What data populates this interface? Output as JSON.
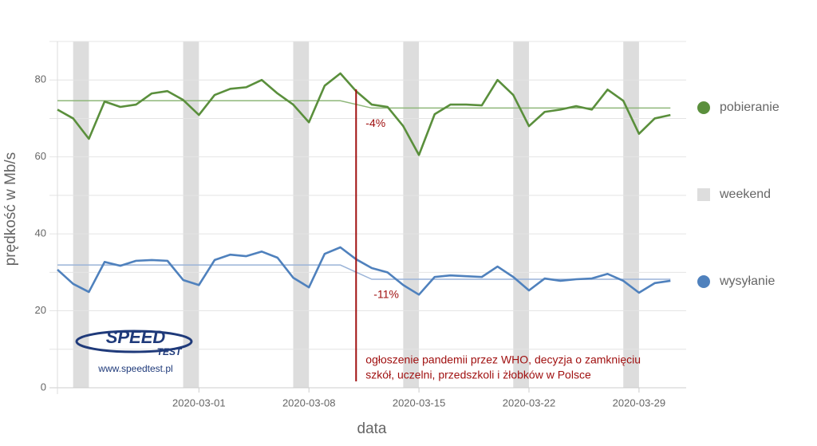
{
  "chart_data": {
    "type": "line",
    "y_label": "prędkość w Mb/s",
    "x_label": "data",
    "x": [
      "2020-02-21",
      "2020-02-22",
      "2020-02-23",
      "2020-02-24",
      "2020-02-25",
      "2020-02-26",
      "2020-02-27",
      "2020-02-28",
      "2020-02-29",
      "2020-03-01",
      "2020-03-02",
      "2020-03-03",
      "2020-03-04",
      "2020-03-05",
      "2020-03-06",
      "2020-03-07",
      "2020-03-08",
      "2020-03-09",
      "2020-03-10",
      "2020-03-11",
      "2020-03-12",
      "2020-03-13",
      "2020-03-14",
      "2020-03-15",
      "2020-03-16",
      "2020-03-17",
      "2020-03-18",
      "2020-03-19",
      "2020-03-20",
      "2020-03-21",
      "2020-03-22",
      "2020-03-23",
      "2020-03-24",
      "2020-03-25",
      "2020-03-26",
      "2020-03-27",
      "2020-03-28",
      "2020-03-29",
      "2020-03-30",
      "2020-03-31"
    ],
    "series": [
      {
        "name": "pobieranie",
        "color": "#5a8f3c",
        "mean_color": "#8fb77a",
        "values": [
          72.3,
          70,
          64.7,
          74.4,
          73,
          73.6,
          76.5,
          77.1,
          74.8,
          70.9,
          76.1,
          77.7,
          78.1,
          80,
          76.5,
          73.6,
          69,
          78.5,
          81.7,
          77.1,
          73.6,
          73,
          68,
          60.5,
          71.1,
          73.6,
          73.6,
          73.4,
          80,
          76.1,
          68,
          71.7,
          72.3,
          73.2,
          72.3,
          77.5,
          74.6,
          66,
          70,
          70.9
        ],
        "mean_before": 74.6,
        "mean_after": 72.7,
        "change_label": "-4%"
      },
      {
        "name": "wysyłanie",
        "color": "#4f81bd",
        "mean_color": "#9bb4d8",
        "values": [
          30.7,
          27,
          24.9,
          32.7,
          31.7,
          33,
          33.2,
          33,
          28,
          26.7,
          33.2,
          34.6,
          34.2,
          35.4,
          33.8,
          28.6,
          26.1,
          34.8,
          36.5,
          33.4,
          31.1,
          30,
          26.7,
          24.2,
          28.8,
          29.2,
          29,
          28.8,
          31.5,
          28.8,
          25.3,
          28.4,
          27.8,
          28.2,
          28.4,
          29.6,
          27.8,
          24.7,
          27.2,
          27.8
        ],
        "mean_before": 31.9,
        "mean_after": 28.2,
        "change_label": "-11%"
      }
    ],
    "weekend": {
      "name": "weekend",
      "color": "#dddddd",
      "bands": [
        [
          "2020-02-22",
          "2020-02-23"
        ],
        [
          "2020-02-29",
          "2020-03-01"
        ],
        [
          "2020-03-07",
          "2020-03-08"
        ],
        [
          "2020-03-14",
          "2020-03-15"
        ],
        [
          "2020-03-21",
          "2020-03-22"
        ],
        [
          "2020-03-28",
          "2020-03-29"
        ]
      ]
    },
    "event": {
      "date": "2020-03-11",
      "color": "#a01010",
      "label": [
        "ogłoszenie pandemii przez WHO, decyzja o zamknięciu",
        "szkół, uczelni, przedszkoli i żłobków w Polsce"
      ]
    },
    "ylim": [
      0,
      90
    ],
    "yticks": [
      0,
      20,
      40,
      60,
      80
    ],
    "ygrid_minor": [
      10,
      30,
      50,
      70,
      90
    ],
    "xticks": [
      "2020-03-01",
      "2020-03-08",
      "2020-03-15",
      "2020-03-22",
      "2020-03-29"
    ],
    "grid": true,
    "legend": "right",
    "logo": {
      "brand": "SPEED",
      "sub": "TEST",
      "url": "www.speedtest.pl"
    }
  }
}
